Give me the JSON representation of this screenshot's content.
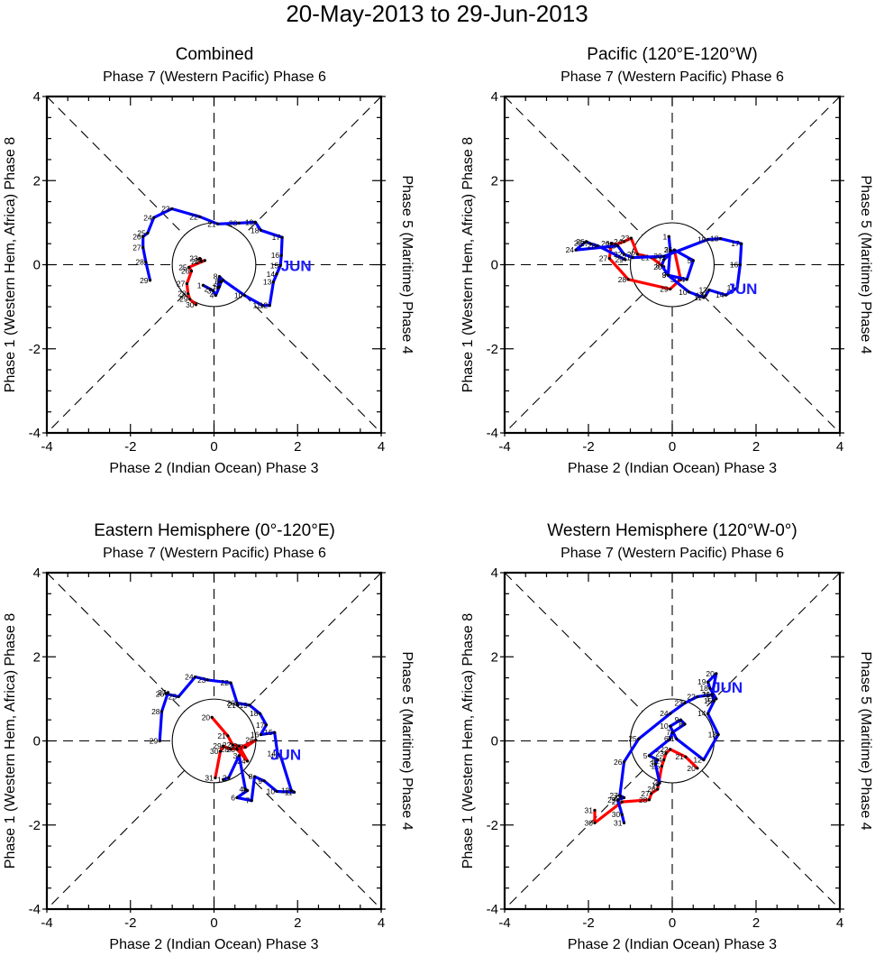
{
  "chart_data": {
    "title": "20-May-2013 to 29-Jun-2013",
    "type": "line",
    "panels": [
      {
        "title": "Combined",
        "top_label": "Phase 7 (Western Pacific) Phase 6",
        "bottom_label": "Phase 2 (Indian Ocean) Phase 3",
        "left_label": "Phase 1 (Western Hem, Africa) Phase 8",
        "right_label": "Phase 5 (Maritime) Phase 4",
        "xlim": [
          -4,
          4
        ],
        "ylim": [
          -4,
          4
        ],
        "xticks": [
          "-4",
          "-2",
          "0",
          "2",
          "4"
        ],
        "yticks": [
          "-4",
          "-2",
          "0",
          "2",
          "4"
        ],
        "month_label": "JUN",
        "month_label_pos": [
          1.6,
          0.0
        ],
        "series": [
          {
            "name": "May",
            "color": "#ff0000",
            "days": [
              23,
              22,
              24,
              25,
              26,
              27,
              28,
              29,
              30
            ],
            "x": [
              -0.34,
              -0.3,
              -0.22,
              -0.6,
              -0.54,
              -0.65,
              -0.62,
              -0.58,
              -0.43
            ],
            "y": [
              0.15,
              0.08,
              0.1,
              -0.06,
              -0.15,
              -0.45,
              -0.69,
              -0.82,
              -0.95
            ]
          },
          {
            "name": "Jun",
            "color": "#0000ff",
            "days": [
              1,
              2,
              3,
              4,
              5,
              6,
              7,
              8,
              9,
              10,
              11,
              12,
              13,
              14,
              15,
              16,
              17,
              18,
              19,
              20,
              21,
              22,
              23,
              24,
              25,
              26,
              27,
              28,
              29
            ],
            "x": [
              -0.26,
              -0.09,
              -0.02,
              0.04,
              0.13,
              0.17,
              0.1,
              0.13,
              0.22,
              0.73,
              1.16,
              1.33,
              1.42,
              1.5,
              1.59,
              1.61,
              1.63,
              1.12,
              0.99,
              0.6,
              0.09,
              -0.34,
              -1.01,
              -1.44,
              -1.59,
              -1.7,
              -1.7,
              -1.63,
              -1.53
            ],
            "y": [
              -0.49,
              -0.58,
              -0.62,
              -0.73,
              -0.52,
              -0.41,
              -0.55,
              -0.28,
              -0.37,
              -0.73,
              -0.97,
              -0.97,
              -0.41,
              -0.22,
              -0.02,
              0.22,
              0.65,
              0.82,
              1.01,
              0.99,
              0.97,
              1.14,
              1.33,
              1.12,
              0.75,
              0.67,
              0.41,
              0.06,
              -0.37
            ]
          }
        ]
      },
      {
        "title": "Pacific (120°E-120°W)",
        "top_label": "Phase 7 (Western Pacific) Phase 6",
        "bottom_label": "Phase 2 (Indian Ocean) Phase 3",
        "left_label": "Phase 1 (Western Hem, Africa) Phase 8",
        "right_label": "Phase 5 (Maritime) Phase 4",
        "xlim": [
          -4,
          4
        ],
        "ylim": [
          -4,
          4
        ],
        "xticks": [
          "-4",
          "-2",
          "0",
          "2",
          "4"
        ],
        "yticks": [
          "-4",
          "-2",
          "0",
          "2",
          "4"
        ],
        "month_label": "JUN",
        "month_label_pos": [
          1.3,
          -0.55
        ],
        "series": [
          {
            "name": "May",
            "color": "#ff0000",
            "days": [
              20,
              21,
              22,
              23,
              24,
              25,
              26,
              27,
              28,
              29,
              30,
              31
            ],
            "x": [
              -0.2,
              -0.5,
              -0.83,
              -0.98,
              -1.15,
              -1.35,
              -1.45,
              -1.5,
              -1.05,
              -0.05,
              0.2,
              0.05
            ],
            "y": [
              -0.05,
              0.17,
              0.25,
              0.63,
              0.55,
              0.48,
              0.5,
              0.15,
              -0.35,
              -0.58,
              -0.35,
              0.35
            ]
          },
          {
            "name": "Jun",
            "color": "#0000ff",
            "days": [
              1,
              2,
              3,
              4,
              5,
              6,
              7,
              8,
              9,
              10,
              11,
              12,
              13,
              14,
              15,
              16,
              17,
              18,
              19,
              20,
              21,
              22,
              23,
              24,
              25,
              26,
              27,
              28,
              29
            ],
            "x": [
              -0.08,
              -0.05,
              -0.1,
              0.35,
              0.5,
              0.05,
              -0.2,
              -0.25,
              -0.1,
              0.4,
              0.75,
              0.8,
              0.88,
              1.28,
              1.55,
              1.62,
              1.65,
              1.15,
              0.85,
              -0.2,
              -0.95,
              -1.15,
              -1.3,
              -2.3,
              -2.1,
              -2.05,
              -1.95,
              -1.78,
              -1.12
            ],
            "y": [
              0.67,
              0.35,
              -0.25,
              -0.35,
              0.1,
              0.35,
              0.12,
              -0.02,
              -0.25,
              -0.65,
              -0.78,
              -0.73,
              -0.6,
              -0.72,
              -0.55,
              0.0,
              0.5,
              0.62,
              0.6,
              0.2,
              0.17,
              0.25,
              0.45,
              0.35,
              0.52,
              0.55,
              0.5,
              0.45,
              0.12
            ]
          }
        ]
      },
      {
        "title": "Eastern Hemisphere (0°-120°E)",
        "top_label": "Phase 7 (Western Pacific) Phase 6",
        "bottom_label": "Phase 2 (Indian Ocean) Phase 3",
        "left_label": "Phase 1 (Western Hem, Africa) Phase 8",
        "right_label": "Phase 5 (Maritime) Phase 4",
        "xlim": [
          -4,
          4
        ],
        "ylim": [
          -4,
          4
        ],
        "xticks": [
          "-4",
          "-2",
          "0",
          "2",
          "4"
        ],
        "yticks": [
          "-4",
          "-2",
          "0",
          "2",
          "4"
        ],
        "month_label": "JUN",
        "month_label_pos": [
          1.35,
          -0.3
        ],
        "series": [
          {
            "name": "May",
            "color": "#ff0000",
            "days": [
              20,
              21,
              22,
              23,
              24,
              25,
              26,
              27,
              28,
              29,
              30,
              31
            ],
            "x": [
              -0.05,
              0.33,
              0.45,
              0.6,
              0.8,
              0.55,
              1.0,
              0.75,
              0.4,
              0.22,
              0.15,
              0.03
            ],
            "y": [
              0.56,
              0.12,
              -0.1,
              -0.12,
              -0.48,
              -0.2,
              0.02,
              -0.15,
              -0.2,
              -0.12,
              -0.25,
              -0.88
            ]
          },
          {
            "name": "Jun",
            "color": "#0000ff",
            "days": [
              1,
              2,
              3,
              4,
              5,
              6,
              7,
              8,
              9,
              10,
              11,
              12,
              13,
              14,
              15,
              16,
              17,
              18,
              19,
              20,
              21,
              22,
              23,
              24,
              25,
              26,
              27,
              28,
              29
            ],
            "x": [
              0.22,
              0.35,
              0.6,
              0.75,
              0.8,
              0.55,
              0.9,
              0.97,
              1.2,
              1.5,
              1.92,
              1.85,
              1.6,
              1.52,
              1.45,
              1.12,
              1.25,
              1.1,
              0.85,
              0.55,
              0.57,
              0.4,
              -0.15,
              -0.45,
              -0.85,
              -1.15,
              -1.1,
              -1.25,
              -1.3
            ],
            "y": [
              -0.92,
              -0.88,
              -0.35,
              -1.15,
              -1.18,
              -1.35,
              -1.42,
              -0.85,
              -0.95,
              -1.2,
              -1.22,
              -1.18,
              -0.38,
              -0.3,
              0.2,
              0.15,
              0.38,
              0.65,
              0.85,
              0.9,
              0.85,
              1.38,
              1.45,
              1.52,
              1.05,
              1.12,
              1.15,
              0.7,
              0.0
            ]
          }
        ]
      },
      {
        "title": "Western Hemisphere (120°W-0°)",
        "top_label": "Phase 7 (Western Pacific) Phase 6",
        "bottom_label": "Phase 2 (Indian Ocean) Phase 3",
        "left_label": "Phase 1 (Western Hem, Africa) Phase 8",
        "right_label": "Phase 5 (Maritime) Phase 4",
        "xlim": [
          -4,
          4
        ],
        "ylim": [
          -4,
          4
        ],
        "xticks": [
          "-4",
          "-2",
          "0",
          "2",
          "4"
        ],
        "yticks": [
          "-4",
          "-2",
          "0",
          "2",
          "4"
        ],
        "month_label": "JUN",
        "month_label_pos": [
          0.95,
          1.3
        ],
        "series": [
          {
            "name": "May",
            "color": "#ff0000",
            "days": [
              20,
              21,
              22,
              23,
              24,
              25,
              26,
              27,
              28,
              29,
              30,
              31
            ],
            "x": [
              0.6,
              0.32,
              -0.05,
              -0.15,
              -0.2,
              -0.25,
              -0.35,
              -0.5,
              -0.55,
              -1.2,
              -1.85,
              -1.85
            ],
            "y": [
              -0.65,
              -0.38,
              -0.2,
              -0.3,
              -0.45,
              -0.6,
              -1.15,
              -1.25,
              -1.4,
              -1.45,
              -1.95,
              -1.65
            ]
          },
          {
            "name": "Jun",
            "color": "#0000ff",
            "days": [
              1,
              2,
              3,
              4,
              5,
              6,
              7,
              8,
              9,
              10,
              11,
              12,
              13,
              14,
              15,
              16,
              17,
              18,
              19,
              20,
              21,
              22,
              23,
              24,
              25,
              26,
              27,
              28,
              29,
              30,
              31
            ],
            "x": [
              -0.35,
              -0.3,
              -0.4,
              -0.35,
              -0.55,
              -0.05,
              -0.0,
              0.3,
              0.2,
              -0.05,
              0.1,
              0.75,
              1.1,
              0.85,
              1.0,
              0.95,
              1.05,
              0.9,
              0.85,
              1.05,
              0.95,
              0.6,
              0.3,
              -0.05,
              -0.8,
              -1.15,
              -1.25,
              -1.15,
              -1.3,
              -1.2,
              -1.15
            ],
            "y": [
              -1.05,
              -1.0,
              -0.55,
              -0.45,
              -0.35,
              0.05,
              0.2,
              0.4,
              0.5,
              0.35,
              0.05,
              -0.45,
              0.15,
              0.65,
              0.95,
              1.1,
              1.0,
              1.25,
              1.4,
              1.6,
              1.1,
              1.05,
              0.9,
              0.65,
              0.05,
              -0.5,
              -1.3,
              -1.35,
              -1.4,
              -1.75,
              -1.95
            ]
          }
        ]
      }
    ]
  }
}
